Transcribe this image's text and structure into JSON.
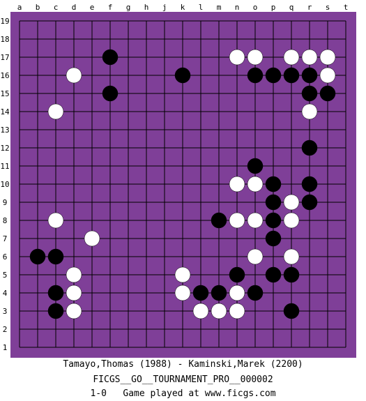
{
  "board": {
    "size": 19,
    "board_color": "#7f3f98",
    "line_color": "#000000",
    "black_color": "#000000",
    "white_color": "#ffffff",
    "columns": [
      "a",
      "b",
      "c",
      "d",
      "e",
      "f",
      "g",
      "h",
      "j",
      "k",
      "l",
      "m",
      "n",
      "o",
      "p",
      "q",
      "r",
      "s",
      "t"
    ],
    "rows": [
      "19",
      "18",
      "17",
      "16",
      "15",
      "14",
      "13",
      "12",
      "11",
      "10",
      "9",
      "8",
      "7",
      "6",
      "5",
      "4",
      "3",
      "2",
      "1"
    ],
    "black_stones": [
      "f17",
      "k16",
      "o16",
      "p16",
      "q16",
      "r16",
      "f15",
      "r15",
      "s15",
      "r12",
      "o11",
      "p10",
      "r10",
      "p9",
      "r9",
      "m8",
      "p8",
      "p7",
      "b6",
      "c6",
      "n5",
      "p5",
      "q5",
      "c4",
      "l4",
      "m4",
      "o4",
      "c3",
      "q3"
    ],
    "white_stones": [
      "n17",
      "o17",
      "q17",
      "r17",
      "s17",
      "d16",
      "s16",
      "c14",
      "r14",
      "n10",
      "o10",
      "q9",
      "c8",
      "n8",
      "o8",
      "q8",
      "e7",
      "o6",
      "q6",
      "d5",
      "k5",
      "d4",
      "k4",
      "n4",
      "l3",
      "m3",
      "n3",
      "d3"
    ]
  },
  "captions": {
    "players": "Tamayo,Thomas (1988) - Kaminski,Marek (2200)",
    "tournament": "FICGS__GO__TOURNAMENT_PRO__000002",
    "result_line": "1-0   Game played at www.ficgs.com"
  }
}
